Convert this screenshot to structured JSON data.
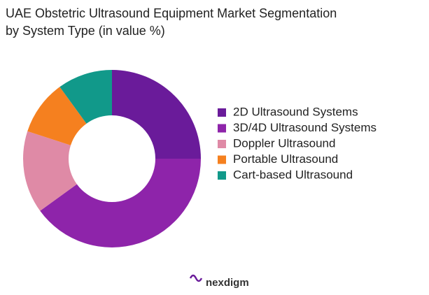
{
  "chart_data": {
    "type": "donut",
    "title": [
      "UAE Obstetric Ultrasound Equipment Market Segmentation",
      "by System Type (in value %)"
    ],
    "categories": [
      "2D Ultrasound Systems",
      "3D/4D Ultrasound Systems",
      "Doppler Ultrasound",
      "Portable Ultrasound",
      "Cart-based Ultrasound"
    ],
    "values": [
      25,
      40,
      15,
      10,
      10
    ],
    "colors": [
      "#6a1b9a",
      "#8e24aa",
      "#df8aa6",
      "#f5801f",
      "#11998a"
    ],
    "legend": "right"
  },
  "footer": {
    "logo": "nexdigm"
  }
}
